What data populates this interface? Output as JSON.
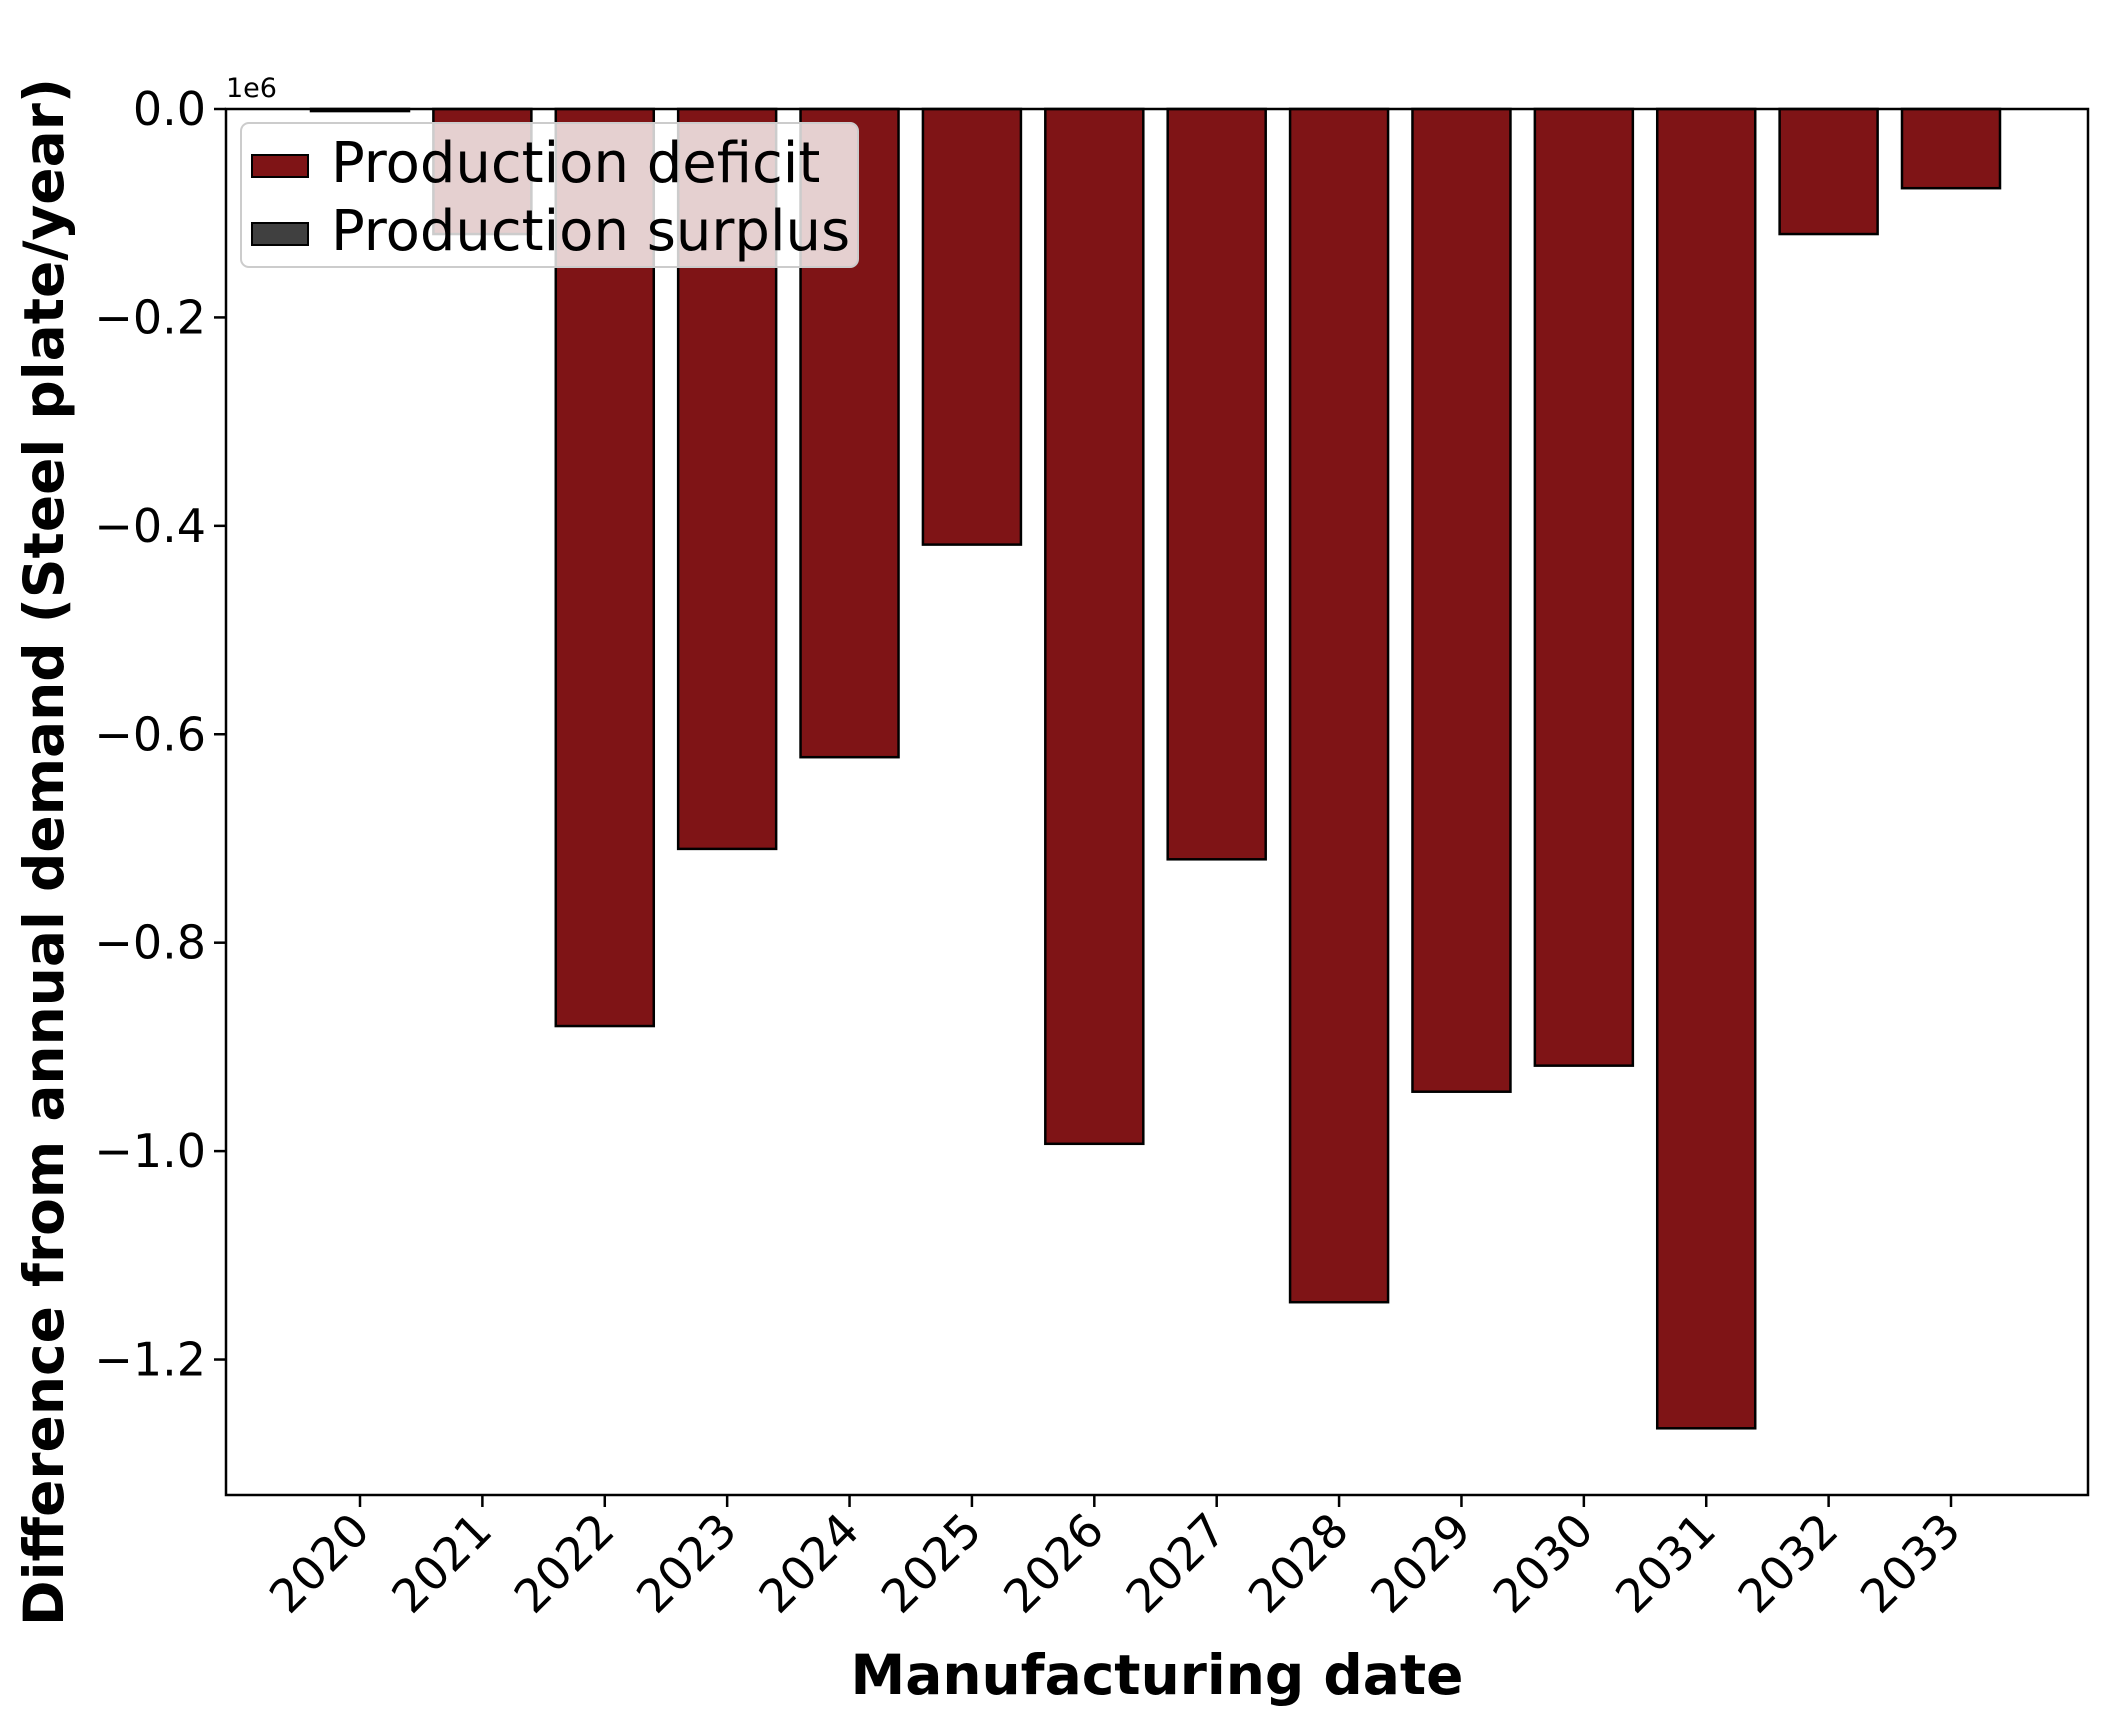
{
  "chart_data": {
    "type": "bar",
    "categories": [
      "2020",
      "2021",
      "2022",
      "2023",
      "2024",
      "2025",
      "2026",
      "2027",
      "2028",
      "2029",
      "2030",
      "2031",
      "2032",
      "2033"
    ],
    "series": [
      {
        "name": "Production deficit",
        "color": "#7f1416",
        "values": [
          -2000,
          -120000,
          -880000,
          -710000,
          -622000,
          -418000,
          -993000,
          -720000,
          -1145000,
          -943000,
          -918000,
          -1266000,
          -120000,
          -76000
        ]
      },
      {
        "name": "Production surplus",
        "color": "#404040",
        "values": [
          0,
          0,
          0,
          0,
          0,
          0,
          0,
          0,
          0,
          0,
          0,
          0,
          0,
          0
        ]
      }
    ],
    "xlabel": "Manufacturing date",
    "ylabel": "Difference from annual demand (Steel plate/year)",
    "ylim": [
      -1330000,
      0
    ],
    "yticks": [
      0,
      -200000,
      -400000,
      -600000,
      -800000,
      -1000000,
      -1200000
    ],
    "ytick_labels": [
      "0.0",
      "−0.2",
      "−0.4",
      "−0.6",
      "−0.8",
      "−1.0",
      "−1.2"
    ],
    "y_offset_label": "1e6",
    "legend_position": "top-left",
    "grid": false
  }
}
